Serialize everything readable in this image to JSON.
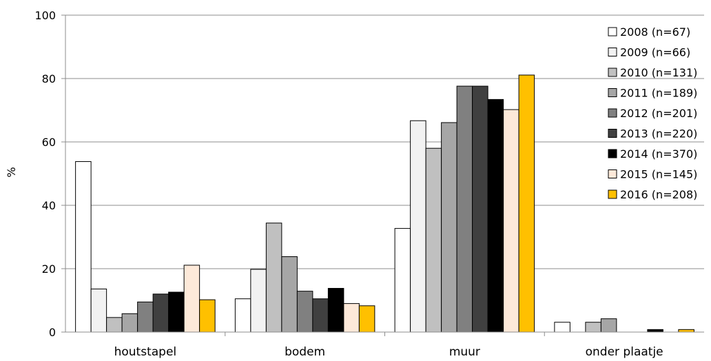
{
  "chart_data": {
    "type": "bar",
    "ylabel": "%",
    "ylim": [
      0,
      100
    ],
    "yticks": [
      0,
      20,
      40,
      60,
      80,
      100
    ],
    "grid": true,
    "legend_position": "right",
    "categories": [
      "houtstapel",
      "bodem",
      "muur",
      "onder plaatje"
    ],
    "series": [
      {
        "name": "2008 (n=67)",
        "color": "#ffffff",
        "values": [
          53.8,
          10.5,
          32.7,
          3.1
        ]
      },
      {
        "name": "2009 (n=66)",
        "color": "#f2f2f2",
        "values": [
          13.6,
          19.8,
          66.7,
          0
        ]
      },
      {
        "name": "2010 (n=131)",
        "color": "#c0c0c0",
        "values": [
          4.6,
          34.4,
          58.0,
          3.1
        ]
      },
      {
        "name": "2011 (n=189)",
        "color": "#a6a6a6",
        "values": [
          5.8,
          23.8,
          66.1,
          4.2
        ]
      },
      {
        "name": "2012 (n=201)",
        "color": "#808080",
        "values": [
          9.5,
          12.9,
          77.6,
          0
        ]
      },
      {
        "name": "2013 (n=220)",
        "color": "#404040",
        "values": [
          12.0,
          10.5,
          77.6,
          0
        ]
      },
      {
        "name": "2014 (n=370)",
        "color": "#000000",
        "values": [
          12.6,
          13.8,
          73.4,
          0.8
        ]
      },
      {
        "name": "2015 (n=145)",
        "color": "#fde9d9",
        "values": [
          21.1,
          9.0,
          70.2,
          0
        ]
      },
      {
        "name": "2016 (n=208)",
        "color": "#ffc000",
        "values": [
          10.2,
          8.3,
          81.1,
          0.8
        ]
      }
    ]
  }
}
